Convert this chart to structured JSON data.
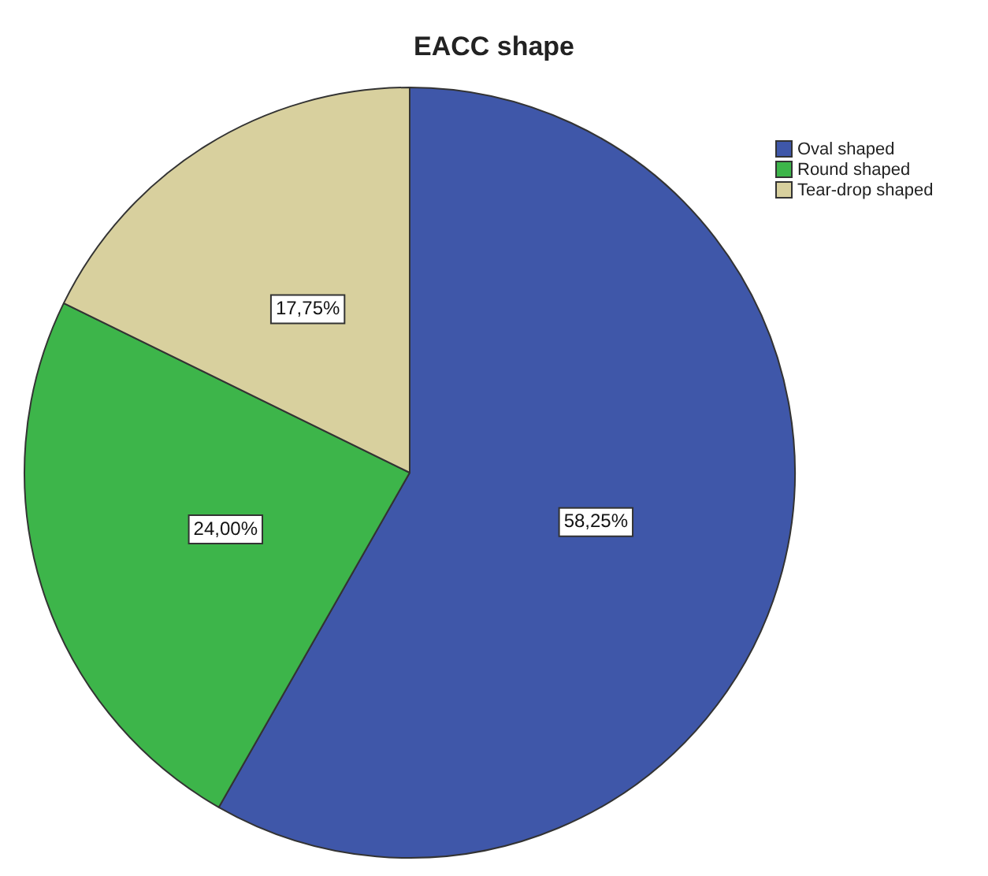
{
  "chart_data": {
    "type": "pie",
    "title": "EACC shape",
    "categories": [
      "Oval shaped",
      "Round shaped",
      "Tear-drop shaped"
    ],
    "values": [
      58.25,
      24.0,
      17.75
    ],
    "colors": [
      "#3f57a9",
      "#3db54a",
      "#d8d09e"
    ],
    "value_labels": [
      "58,25%",
      "24,00%",
      "17,75%"
    ],
    "legend": "top right"
  }
}
